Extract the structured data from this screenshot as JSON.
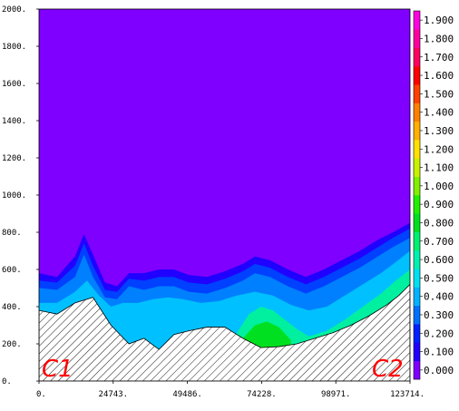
{
  "chart_data": {
    "type": "contour",
    "title": "",
    "xlabel": "",
    "ylabel": "",
    "xlim": [
      0,
      123714
    ],
    "ylim": [
      0,
      2000
    ],
    "x_ticks": [
      "0.",
      "24743.",
      "49486.",
      "74228.",
      "98971.",
      "123714."
    ],
    "x_tick_values": [
      0,
      24743,
      49486,
      74228,
      98971,
      123714
    ],
    "y_ticks": [
      "0.",
      "200.",
      "400.",
      "600.",
      "800.",
      "1000.",
      "1200.",
      "1400.",
      "1600.",
      "1800.",
      "2000."
    ],
    "y_tick_values": [
      0,
      200,
      400,
      600,
      800,
      1000,
      1200,
      1400,
      1600,
      1800,
      2000
    ],
    "colorbar": {
      "labels": [
        "0.000",
        "0.100",
        "0.200",
        "0.300",
        "0.400",
        "0.500",
        "0.600",
        "0.700",
        "0.800",
        "0.900",
        "1.000",
        "1.100",
        "1.200",
        "1.300",
        "1.400",
        "1.500",
        "1.600",
        "1.700",
        "1.800",
        "1.900"
      ],
      "colors": [
        "#8000ff",
        "#2000ff",
        "#0020ff",
        "#0070ff",
        "#00b4ff",
        "#00e0f0",
        "#00f0b0",
        "#00f070",
        "#00e020",
        "#20f000",
        "#80f000",
        "#c8f000",
        "#ffe000",
        "#ffb000",
        "#ff8000",
        "#ff4000",
        "#ff0000",
        "#ff0060",
        "#ff00a0",
        "#ff00e0"
      ]
    },
    "background_value_color": "#8000ff",
    "terrain": {
      "x": [
        0,
        6000,
        12000,
        18000,
        24000,
        30000,
        35000,
        40000,
        45000,
        50000,
        56000,
        62000,
        68000,
        74000,
        80000,
        86000,
        92000,
        98000,
        104000,
        110000,
        116000,
        120000,
        123714
      ],
      "y": [
        380,
        360,
        420,
        450,
        300,
        200,
        230,
        170,
        250,
        270,
        290,
        290,
        230,
        180,
        185,
        200,
        230,
        260,
        300,
        350,
        410,
        460,
        520
      ]
    },
    "contours": [
      {
        "level": 0.1,
        "color": "#2000ff",
        "x": [
          0,
          6000,
          12000,
          15000,
          18000,
          22000,
          26000,
          30000,
          35000,
          40000,
          45000,
          50000,
          56000,
          62000,
          68000,
          72000,
          77000,
          83000,
          89000,
          95000,
          101000,
          107000,
          113000,
          118000,
          123714
        ],
        "y": [
          580,
          560,
          670,
          790,
          680,
          530,
          510,
          580,
          580,
          600,
          600,
          570,
          560,
          590,
          630,
          670,
          650,
          600,
          560,
          600,
          650,
          700,
          760,
          800,
          850
        ]
      },
      {
        "level": 0.2,
        "color": "#0040ff",
        "x": [
          0,
          6000,
          12000,
          15000,
          18000,
          22000,
          26000,
          30000,
          35000,
          40000,
          45000,
          50000,
          56000,
          62000,
          68000,
          72000,
          77000,
          83000,
          89000,
          95000,
          101000,
          107000,
          113000,
          118000,
          123714
        ],
        "y": [
          540,
          530,
          620,
          740,
          620,
          490,
          480,
          550,
          540,
          560,
          560,
          530,
          520,
          550,
          590,
          630,
          610,
          560,
          520,
          560,
          610,
          660,
          720,
          770,
          820
        ]
      },
      {
        "level": 0.3,
        "color": "#0080ff",
        "x": [
          0,
          6000,
          12000,
          15000,
          18000,
          22000,
          26000,
          30000,
          35000,
          40000,
          45000,
          50000,
          56000,
          62000,
          68000,
          72000,
          77000,
          83000,
          89000,
          95000,
          101000,
          107000,
          113000,
          118000,
          123714
        ],
        "y": [
          500,
          490,
          560,
          680,
          560,
          450,
          440,
          510,
          490,
          510,
          510,
          480,
          470,
          500,
          540,
          580,
          560,
          510,
          470,
          510,
          560,
          610,
          670,
          720,
          770
        ]
      },
      {
        "level": 0.4,
        "color": "#00c0ff",
        "x": [
          0,
          6000,
          12000,
          16000,
          20000,
          24000,
          28000,
          33000,
          38000,
          43000,
          48000,
          54000,
          60000,
          66000,
          72000,
          78000,
          84000,
          90000,
          96000,
          102000,
          108000,
          114000,
          119000,
          123714
        ],
        "y": [
          420,
          420,
          480,
          540,
          460,
          400,
          420,
          420,
          440,
          450,
          440,
          420,
          430,
          460,
          480,
          460,
          410,
          380,
          400,
          460,
          520,
          580,
          640,
          700
        ]
      },
      {
        "level": 0.6,
        "color": "#00f0a0",
        "x": [
          66000,
          70000,
          74000,
          78000,
          82000,
          86000,
          90000,
          96000,
          102000,
          108000,
          114000,
          119000,
          123714
        ],
        "y": [
          260,
          360,
          400,
          380,
          330,
          280,
          240,
          270,
          330,
          400,
          470,
          540,
          600
        ]
      },
      {
        "level": 0.8,
        "color": "#00e020",
        "x": [
          68000,
          72000,
          76000,
          80000,
          84000
        ],
        "y": [
          230,
          300,
          320,
          290,
          220
        ]
      }
    ],
    "annotations": [
      "C1",
      "C2"
    ]
  }
}
